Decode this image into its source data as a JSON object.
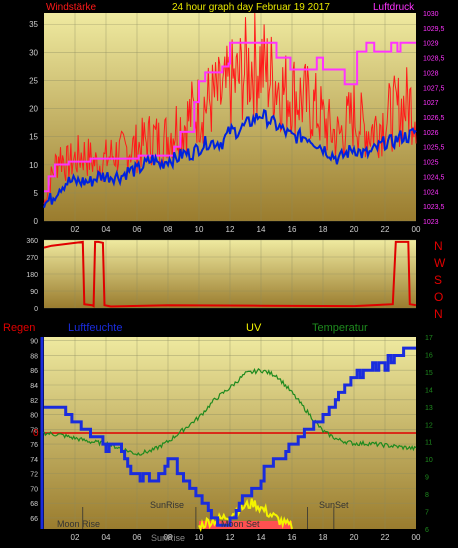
{
  "colors": {
    "wind": "#ff1a1a",
    "pressure": "#ff33ff",
    "wind_avg": "#0022dd",
    "direction": "#e00000",
    "title": "#e8e800",
    "humidity": "#1a2cdd",
    "temperature": "#1e8a1e",
    "rain": "#e00000",
    "uv": "#f3f300",
    "grid": "#8a8a60",
    "plot_top": "#efeaa0",
    "plot_bottom": "#9a7c2e",
    "axis_text": "#d0d0d0"
  },
  "header": {
    "left_label": "Windstärke",
    "title": "24 hour graph day   Februar 19 2017",
    "right_label": "Luftdruck"
  },
  "direction_labels": [
    "N",
    "W",
    "S",
    "O",
    "N"
  ],
  "bottom_header": {
    "rain": "Regen",
    "humidity": "Luftfeuchte",
    "uv": "UV",
    "temperature": "Temperatur"
  },
  "markers": {
    "moon_rise": "Moon Rise",
    "sunrise": "SunRise",
    "moon_set": "Moon Set",
    "sunset": "SunSet",
    "bottom_sunrise": "SunRise"
  },
  "chart_data": [
    {
      "type": "line",
      "x_ticks": [
        "02",
        "04",
        "06",
        "08",
        "10",
        "12",
        "14",
        "16",
        "18",
        "20",
        "22",
        "00"
      ],
      "y_left": {
        "ticks": [
          0,
          5,
          10,
          15,
          20,
          25,
          30,
          35
        ],
        "lim": [
          0,
          37
        ]
      },
      "y_right": {
        "ticks": [
          "1023",
          "1023,5",
          "1024",
          "1024,5",
          "1025",
          "1025,5",
          "1026",
          "1026,5",
          "1027",
          "1027,5",
          "1028",
          "1028,5",
          "1029",
          "1029,5",
          "1030"
        ],
        "lim": [
          1023,
          1030
        ]
      },
      "series": [
        {
          "name": "Windstärke",
          "x": [
            0,
            0.5,
            1,
            1.5,
            2,
            2.5,
            3,
            3.5,
            4,
            4.5,
            5,
            5.5,
            6,
            6.5,
            7,
            7.5,
            8,
            8.5,
            9,
            9.5,
            10,
            10.5,
            11,
            11.5,
            12,
            12.5,
            13,
            13.5,
            14,
            14.5,
            15,
            15.5,
            16,
            16.5,
            17,
            17.5,
            18,
            18.5,
            19,
            19.5,
            20,
            20.5,
            21,
            21.5,
            22,
            22.5,
            23,
            23.5,
            24
          ],
          "values": [
            3,
            8,
            12,
            10,
            11,
            12,
            11,
            10,
            11,
            12,
            12,
            13,
            13,
            14,
            15,
            14,
            15,
            17,
            17,
            19,
            20,
            21,
            22,
            22,
            24,
            25,
            27,
            28,
            28,
            26,
            25,
            23,
            23,
            22,
            21,
            20,
            18,
            16,
            15,
            17,
            19,
            17,
            16,
            17,
            18,
            19,
            20,
            21,
            20
          ]
        },
        {
          "name": "Luftdruck",
          "x": [
            0,
            0.3,
            0.7,
            1.6,
            2.6,
            3,
            5.8,
            6.1,
            8.4,
            8.8,
            9.7,
            10,
            10.4,
            11.5,
            11.9,
            12,
            12.4,
            14.6,
            15,
            15.7,
            15.9,
            17,
            17.6,
            18,
            19,
            19.4,
            20.2,
            20.8,
            21.1,
            21.3,
            21.9,
            22.4,
            22.8,
            23,
            24
          ],
          "values": [
            1024,
            1024.5,
            1024.9,
            1025,
            1025,
            1025.1,
            1025.1,
            1025.2,
            1025.5,
            1026,
            1027,
            1027.7,
            1028,
            1028.2,
            1028.3,
            1029,
            1029,
            1029,
            1028.5,
            1028.5,
            1028.1,
            1028.1,
            1028.5,
            1028.1,
            1028.1,
            1027.6,
            1028.7,
            1029,
            1029,
            1028.7,
            1028.7,
            1029,
            1028.7,
            1029,
            1029
          ]
        },
        {
          "name": "Wind-Mittel",
          "x": [
            0,
            0.5,
            1,
            1.5,
            2,
            2.5,
            3,
            3.5,
            4,
            4.5,
            5,
            5.5,
            6,
            6.5,
            7,
            7.5,
            8,
            8.5,
            9,
            9.5,
            10,
            10.5,
            11,
            11.5,
            12,
            12.5,
            13,
            13.5,
            14,
            14.5,
            15,
            15.5,
            16,
            16.5,
            17,
            17.5,
            18,
            18.5,
            19,
            19.5,
            20,
            20.5,
            21,
            21.5,
            22,
            22.5,
            23,
            23.5,
            24
          ],
          "values": [
            3,
            4,
            6,
            7,
            7,
            7,
            7,
            8,
            8,
            8,
            8,
            9,
            9,
            10,
            11,
            10,
            11,
            11,
            12,
            12,
            13,
            14,
            14,
            14,
            16,
            16,
            17,
            18,
            19,
            18,
            17,
            16,
            15,
            15,
            15,
            14,
            13,
            12,
            11,
            12,
            13,
            12,
            12,
            13,
            14,
            14,
            15,
            15,
            16
          ]
        }
      ]
    },
    {
      "type": "line",
      "y_left": {
        "ticks": [
          0,
          90,
          180,
          270,
          360
        ],
        "lim": [
          0,
          360
        ]
      },
      "series": [
        {
          "name": "Windrichtung",
          "x": [
            0,
            0.5,
            2.5,
            2.6,
            3.1,
            3.2,
            3.3,
            3.5,
            3.8,
            3.9,
            4.2,
            4.3,
            8,
            14,
            20,
            22.5,
            22.7,
            23.5,
            23.6,
            24
          ],
          "values": [
            320,
            330,
            350,
            20,
            15,
            10,
            350,
            350,
            345,
            15,
            10,
            8,
            15,
            12,
            10,
            20,
            350,
            350,
            20,
            15
          ]
        }
      ]
    },
    {
      "type": "line",
      "x_ticks": [
        "02",
        "04",
        "06",
        "08",
        "10",
        "12",
        "14",
        "16",
        "18",
        "20",
        "22",
        "00"
      ],
      "y_left": {
        "ticks": [
          66,
          68,
          70,
          72,
          74,
          76,
          78,
          80,
          82,
          84,
          86,
          88,
          90
        ],
        "lim": [
          64.5,
          90.5
        ]
      },
      "y_right": {
        "ticks": [
          6,
          7,
          8,
          9,
          10,
          11,
          12,
          13,
          14,
          15,
          16,
          17
        ],
        "lim": [
          6,
          17
        ]
      },
      "rain_marker": "0",
      "series": [
        {
          "name": "Luftfeuchte",
          "x": [
            0,
            1,
            1.5,
            2,
            2.4,
            3,
            3.6,
            4,
            4.4,
            5,
            5.4,
            5.8,
            6.4,
            7,
            7.6,
            8,
            8.4,
            8.9,
            9.5,
            10,
            10.6,
            11,
            11.6,
            12,
            12.6,
            13,
            13.4,
            14,
            14.4,
            15,
            15.6,
            16,
            16.6,
            17,
            17.6,
            18,
            18.6,
            19,
            19.6,
            20,
            20.6,
            21,
            21.6,
            22,
            22.6,
            23,
            23.6,
            24
          ],
          "values": [
            81,
            81,
            80,
            79,
            78,
            78,
            77,
            76,
            76,
            75,
            73,
            72,
            72,
            71,
            72,
            74,
            73,
            71,
            70,
            69,
            67,
            66,
            65,
            66,
            68,
            69,
            70,
            71,
            73,
            74,
            75,
            76,
            77,
            78,
            79,
            80,
            81,
            83,
            84,
            85,
            86,
            86,
            87,
            87,
            88,
            88,
            89,
            89
          ]
        },
        {
          "name": "Temperatur",
          "x": [
            0,
            1,
            2,
            3,
            4,
            5,
            6,
            7,
            8,
            9,
            10,
            11,
            12,
            13,
            14,
            15,
            16,
            17,
            18,
            19,
            20,
            21,
            22,
            23,
            24
          ],
          "values": [
            11.5,
            11.4,
            11.2,
            11.0,
            10.9,
            10.6,
            10.3,
            10.5,
            11.0,
            11.7,
            12.4,
            13.4,
            14.1,
            14.9,
            15.1,
            14.8,
            13.8,
            12.7,
            11.6,
            11.1,
            10.9,
            10.9,
            10.8,
            10.7,
            10.6
          ]
        },
        {
          "name": "UV",
          "x": [
            10,
            10.5,
            11,
            11.5,
            12,
            12.5,
            13,
            13.5,
            14,
            14.5,
            15,
            15.5,
            16
          ],
          "values": [
            6.1,
            6.4,
            6.5,
            6.6,
            6.8,
            7.1,
            7.3,
            7.5,
            7.2,
            6.9,
            6.6,
            6.3,
            6.1
          ]
        }
      ]
    }
  ]
}
